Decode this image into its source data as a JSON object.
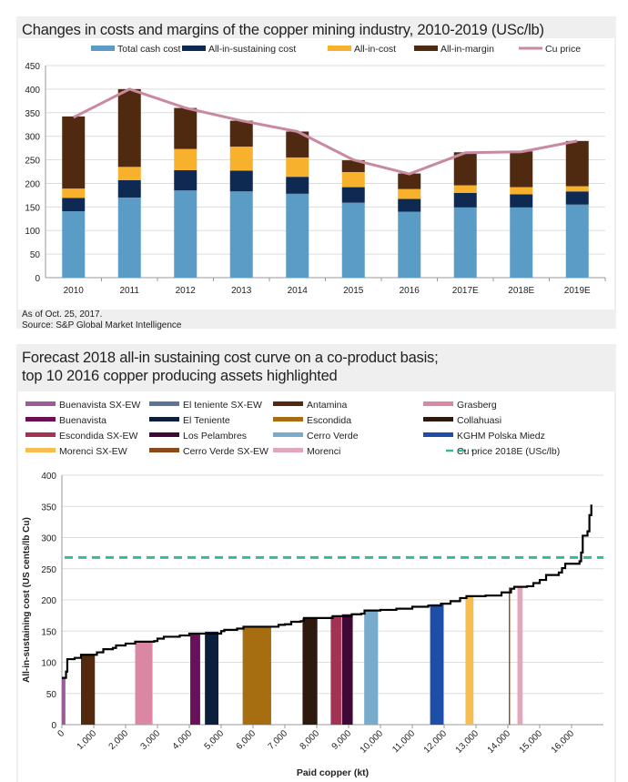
{
  "chart_data": [
    {
      "type": "bar",
      "stacked": true,
      "title": "Changes in costs and margins of the copper mining industry, 2010-2019 (USc/lb)",
      "categories": [
        "2010",
        "2011",
        "2012",
        "2013",
        "2014",
        "2015",
        "2016",
        "2017E",
        "2018E",
        "2019E"
      ],
      "ylim": [
        0,
        450
      ],
      "yticks": [
        0,
        50,
        100,
        150,
        200,
        250,
        300,
        350,
        400,
        450
      ],
      "grid": true,
      "legend_placement": "top",
      "series": [
        {
          "name": "Total cash cost",
          "color": "#5a9cc5",
          "values": [
            141,
            170,
            185,
            183,
            178,
            159,
            140,
            149,
            149,
            155
          ]
        },
        {
          "name": "All-in-sustaining cost",
          "color": "#0e2a52",
          "values": [
            28,
            37,
            43,
            44,
            36,
            33,
            27,
            31,
            28,
            28
          ]
        },
        {
          "name": "All-in-cost",
          "color": "#f7b12c",
          "values": [
            20,
            28,
            45,
            51,
            41,
            32,
            21,
            16,
            15,
            11
          ]
        },
        {
          "name": "All-in-margin",
          "color": "#4f2a10",
          "values": [
            153,
            165,
            87,
            55,
            55,
            25,
            33,
            70,
            76,
            96
          ]
        }
      ],
      "line_series": {
        "name": "Cu price",
        "color": "#c98aa0",
        "values": [
          340,
          400,
          360,
          333,
          310,
          250,
          220,
          265,
          267,
          290
        ]
      },
      "notes": [
        "As of Oct. 25, 2017.",
        "Source: S&P Global Market Intelligence"
      ]
    },
    {
      "type": "area",
      "title_lines": [
        "Forecast 2018 all-in sustaining cost curve on a co-product basis;",
        "top 10 2016 copper producing assets highlighted"
      ],
      "xlabel": "Paid copper (kt)",
      "ylabel": "All-in-sustaining cost (US cents/lb Cu)",
      "xlim": [
        0,
        16620
      ],
      "ylim": [
        0,
        400
      ],
      "xticks": [
        "0",
        "1,000",
        "2,000",
        "3,000",
        "4,000",
        "5,000",
        "6,000",
        "7,000",
        "8,000",
        "9,000",
        "10,000",
        "11,000",
        "12,000",
        "13,000",
        "14,000",
        "15,000",
        "16,000"
      ],
      "yticks": [
        0,
        50,
        100,
        150,
        200,
        250,
        300,
        350,
        400
      ],
      "grid": true,
      "legend_placement": "top",
      "assets": [
        {
          "name": "Buenavista SX-EW",
          "color": "#9a5c96",
          "x0": 0,
          "x1": 110,
          "cost": 75
        },
        {
          "name": "El teniente SX-EW",
          "color": "#5a7595"
        },
        {
          "name": "Antamina",
          "color": "#53290f",
          "x0": 600,
          "x1": 1035,
          "cost": 112
        },
        {
          "name": "Grasberg",
          "color": "#d987a3",
          "x0": 2300,
          "x1": 2845,
          "cost": 133
        },
        {
          "name": "Buenavista",
          "color": "#6a0f5a",
          "x0": 4030,
          "x1": 4340,
          "cost": 147
        },
        {
          "name": "El Teniente",
          "color": "#0b1f3d",
          "x0": 4490,
          "x1": 4915,
          "cost": 149
        },
        {
          "name": "Escondida",
          "color": "#a66e10",
          "x0": 5675,
          "x1": 6570,
          "cost": 157
        },
        {
          "name": "Collahuasi",
          "color": "#2e1a0c",
          "x0": 7555,
          "x1": 8020,
          "cost": 171
        },
        {
          "name": "Escondida SX-EW",
          "color": "#a33354",
          "x0": 8440,
          "x1": 8770,
          "cost": 174
        },
        {
          "name": "Los Pelambres",
          "color": "#3e0a35",
          "x0": 8790,
          "x1": 9130,
          "cost": 177
        },
        {
          "name": "Cerro Verde",
          "color": "#78abcc",
          "x0": 9490,
          "x1": 9925,
          "cost": 183
        },
        {
          "name": "KGHM Polska Miedz",
          "color": "#1e4fa8",
          "x0": 11560,
          "x1": 11985,
          "cost": 193
        },
        {
          "name": "Morenci SX-EW",
          "color": "#f6bd50",
          "x0": 12670,
          "x1": 12920,
          "cost": 206
        },
        {
          "name": "Cerro Verde SX-EW",
          "color": "#8a4a1c",
          "x0": 14030,
          "x1": 14070,
          "cost": 220
        },
        {
          "name": "Morenci",
          "color": "#e3a7bd",
          "x0": 14300,
          "x1": 14465,
          "cost": 221
        }
      ],
      "cu_price": {
        "name": "Cu price 2018E (USc/lb)",
        "color": "#3bb89a",
        "value": 268
      },
      "curve": [
        [
          0,
          75
        ],
        [
          100,
          75
        ],
        [
          130,
          85
        ],
        [
          170,
          105
        ],
        [
          400,
          107
        ],
        [
          600,
          112
        ],
        [
          1000,
          112
        ],
        [
          1100,
          116
        ],
        [
          1300,
          121
        ],
        [
          1600,
          123
        ],
        [
          1700,
          127
        ],
        [
          2000,
          130
        ],
        [
          2300,
          133
        ],
        [
          2900,
          134
        ],
        [
          3000,
          138
        ],
        [
          3200,
          141
        ],
        [
          3700,
          143
        ],
        [
          4000,
          146
        ],
        [
          5000,
          150
        ],
        [
          5100,
          152
        ],
        [
          5500,
          154
        ],
        [
          5700,
          157
        ],
        [
          6600,
          157
        ],
        [
          6800,
          160
        ],
        [
          7000,
          161
        ],
        [
          7200,
          165
        ],
        [
          7500,
          166
        ],
        [
          7600,
          171
        ],
        [
          8000,
          171
        ],
        [
          8500,
          174
        ],
        [
          9100,
          177
        ],
        [
          9400,
          178
        ],
        [
          9500,
          183
        ],
        [
          10000,
          184
        ],
        [
          10500,
          186
        ],
        [
          11000,
          189
        ],
        [
          11500,
          191
        ],
        [
          11900,
          194
        ],
        [
          12000,
          194
        ],
        [
          12200,
          198
        ],
        [
          12500,
          203
        ],
        [
          12700,
          206
        ],
        [
          13300,
          207
        ],
        [
          13800,
          212
        ],
        [
          14100,
          218
        ],
        [
          14200,
          221
        ],
        [
          14600,
          222
        ],
        [
          14800,
          227
        ],
        [
          15000,
          232
        ],
        [
          15200,
          240
        ],
        [
          15600,
          244
        ],
        [
          15700,
          251
        ],
        [
          15800,
          258
        ],
        [
          16200,
          258
        ],
        [
          16250,
          262
        ],
        [
          16300,
          276
        ],
        [
          16350,
          303
        ],
        [
          16500,
          310
        ],
        [
          16560,
          336
        ],
        [
          16620,
          353
        ]
      ]
    }
  ]
}
